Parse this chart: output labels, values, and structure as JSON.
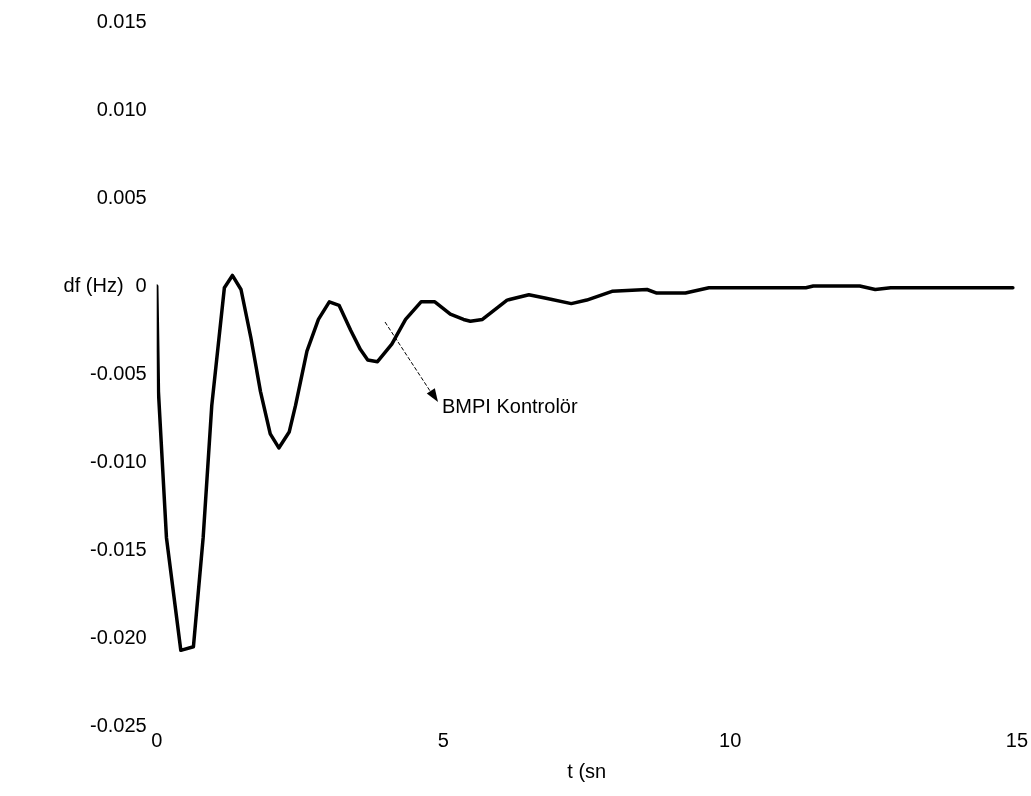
{
  "chart_data": {
    "type": "line",
    "xlabel": "t (sn",
    "ylabel": "df (Hz)",
    "xlim": [
      0,
      15
    ],
    "xticks": [
      0,
      5,
      10,
      15
    ],
    "ylim": [
      -0.025,
      0.015
    ],
    "yticks": [
      {
        "value": -0.025,
        "label": "-0.025"
      },
      {
        "value": -0.02,
        "label": "-0.020"
      },
      {
        "value": -0.015,
        "label": "-0.015"
      },
      {
        "value": -0.01,
        "label": "-0.010"
      },
      {
        "value": -0.005,
        "label": "-0.005"
      },
      {
        "value": 0,
        "label": "0"
      },
      {
        "value": 0.005,
        "label": "0.005"
      },
      {
        "value": 0.01,
        "label": "0.010"
      },
      {
        "value": 0.015,
        "label": "0.015"
      }
    ],
    "grid": false,
    "legend": false,
    "marker": "none",
    "line_style": "solid",
    "annotations": [
      "BMPI Kontrolör"
    ],
    "series": [
      {
        "color": "#000000",
        "x": [
          0,
          0.03,
          0.17,
          0.42,
          0.64,
          0.81,
          0.96,
          1.18,
          1.32,
          1.47,
          1.64,
          1.81,
          1.98,
          2.13,
          2.31,
          2.42,
          2.62,
          2.82,
          3.01,
          3.18,
          3.38,
          3.55,
          3.68,
          3.85,
          4.1,
          4.34,
          4.61,
          4.85,
          5.12,
          5.35,
          5.47,
          5.68,
          6.11,
          6.49,
          6.79,
          7.23,
          7.5,
          7.94,
          8.55,
          8.72,
          9.22,
          9.63,
          11.32,
          11.45,
          12.26,
          12.53,
          12.8,
          14.93
        ],
        "values": [
          0,
          -0.006,
          -0.0143,
          -0.0207,
          -0.0205,
          -0.0143,
          -0.0068,
          -0.0001,
          0.0006,
          -0.0002,
          -0.0029,
          -0.006,
          -0.0084,
          -0.0092,
          -0.0083,
          -0.0068,
          -0.0037,
          -0.0019,
          -0.0009,
          -0.0011,
          -0.0025,
          -0.0036,
          -0.0042,
          -0.0043,
          -0.0033,
          -0.0019,
          -0.0009,
          -0.0009,
          -0.0016,
          -0.0019,
          -0.002,
          -0.0019,
          -0.0008,
          -0.0005,
          -0.0007,
          -0.001,
          -0.0008,
          -0.0003,
          -0.0002,
          -0.0004,
          -0.0004,
          -0.0001,
          -0.0001,
          0,
          0,
          -0.0002,
          -0.0001,
          -0.0001
        ]
      }
    ]
  }
}
